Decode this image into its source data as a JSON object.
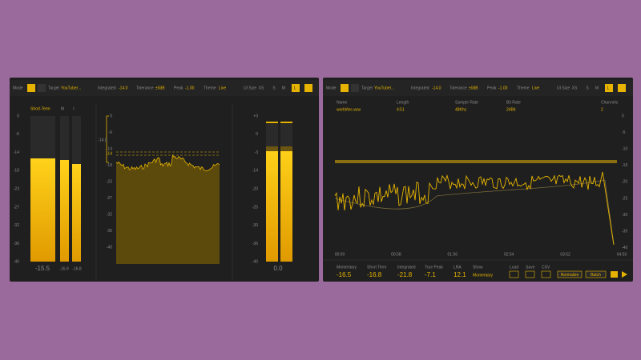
{
  "left_panel": {
    "header": {
      "mode_label": "Mode",
      "target_label": "Target",
      "target_value": "YouTube/...",
      "integrated_label": "Integrated",
      "integrated_value": "-14.0",
      "tolerance_label": "Tolerance",
      "tolerance_value": "±0dB",
      "peak_label": "Peak",
      "peak_value": "-1.00",
      "theme_label": "Theme",
      "theme_value": "Live",
      "unit_label": "UI Size",
      "sizes": [
        "XS",
        "S",
        "M",
        "L"
      ]
    },
    "meter": {
      "mode": "Short-Term",
      "mode_options": [
        "M",
        "I"
      ],
      "scale": [
        "0",
        "-6",
        "-14",
        "-18",
        "-23",
        "-27",
        "-32",
        "-36",
        "-40"
      ],
      "readouts": [
        "-15.5",
        "-16.9",
        "-16.8"
      ]
    },
    "history": {
      "scale": [
        "0",
        "-6",
        "-14",
        "-18",
        "-23",
        "-27",
        "-32",
        "-36",
        "-40"
      ],
      "target_label": "-14.0",
      "target_mark": "-14"
    },
    "peak_meter": {
      "scale": [
        "+3",
        "0",
        "-3",
        "-14",
        "-20",
        "-25",
        "-30",
        "-36",
        "-40"
      ],
      "readout": "0.0"
    }
  },
  "right_panel": {
    "header": {
      "mode_label": "Mode",
      "target_label": "Target",
      "target_value": "YouTube/...",
      "integrated_label": "Integrated",
      "integrated_value": "-14.0",
      "tolerance_label": "Tolerance",
      "tolerance_value": "±0dB",
      "peak_label": "Peak",
      "peak_value": "-1.00",
      "theme_label": "Theme",
      "theme_value": "Live",
      "unit_label": "UI Size",
      "sizes": [
        "XS",
        "S",
        "M",
        "L"
      ]
    },
    "file_info": [
      {
        "label": "Name",
        "value": "world/tec.wav"
      },
      {
        "label": "Length",
        "value": "4:51"
      },
      {
        "label": "Sample Rate",
        "value": "48Khz"
      },
      {
        "label": "Bit Rate",
        "value": "24Bit"
      },
      {
        "label": "Channels",
        "value": "2"
      }
    ],
    "graph": {
      "y_scale": [
        "0",
        "-5",
        "-10",
        "-15",
        "-20",
        "-25",
        "-30",
        "-35",
        "-40"
      ],
      "x_scale": [
        "00:00",
        "00:58",
        "01:56",
        "02:54",
        "03:52",
        "04:50"
      ]
    },
    "stats": [
      {
        "label": "Momentary",
        "value": "-16.5"
      },
      {
        "label": "Short Term",
        "value": "-16.8"
      },
      {
        "label": "Integrated",
        "value": "-21.8"
      },
      {
        "label": "True Peak",
        "value": "-7.1"
      },
      {
        "label": "LRA",
        "value": "12.1"
      }
    ],
    "display": {
      "label": "Show",
      "value": "Momentary"
    },
    "actions": [
      "Load",
      "Save",
      "CSV"
    ],
    "buttons": [
      "Normalize",
      "Batch"
    ]
  }
}
